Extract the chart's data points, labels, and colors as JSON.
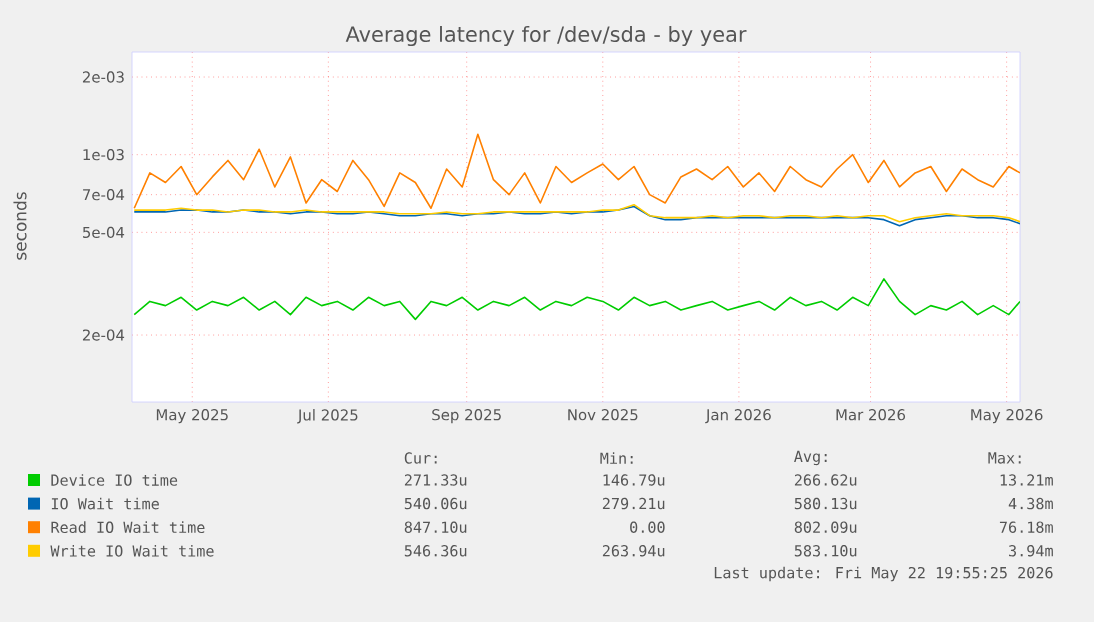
{
  "chart_data": {
    "type": "line",
    "title": "Average latency for /dev/sda - by year",
    "ylabel": "seconds",
    "x": [
      "2025-04-20",
      "2025-04-27",
      "2025-05-04",
      "2025-05-11",
      "2025-05-18",
      "2025-05-25",
      "2025-06-01",
      "2025-06-08",
      "2025-06-15",
      "2025-06-22",
      "2025-06-29",
      "2025-07-06",
      "2025-07-13",
      "2025-07-20",
      "2025-07-27",
      "2025-08-03",
      "2025-08-10",
      "2025-08-17",
      "2025-08-24",
      "2025-08-31",
      "2025-09-07",
      "2025-09-14",
      "2025-09-21",
      "2025-09-28",
      "2025-10-05",
      "2025-10-12",
      "2025-10-19",
      "2025-10-26",
      "2025-11-02",
      "2025-11-09",
      "2025-11-16",
      "2025-11-23",
      "2025-11-30",
      "2025-12-07",
      "2025-12-14",
      "2025-12-21",
      "2025-12-28",
      "2026-01-04",
      "2026-01-11",
      "2026-01-18",
      "2026-01-25",
      "2026-02-01",
      "2026-02-08",
      "2026-02-15",
      "2026-02-22",
      "2026-03-01",
      "2026-03-08",
      "2026-03-15",
      "2026-03-22",
      "2026-03-29",
      "2026-04-05",
      "2026-04-12",
      "2026-04-19",
      "2026-04-26",
      "2026-05-03",
      "2026-05-10",
      "2026-05-17",
      "2026-05-22"
    ],
    "series": [
      {
        "name": "Device IO time",
        "color": "#00cc00",
        "values": [
          0.00024,
          0.00027,
          0.00026,
          0.00028,
          0.00025,
          0.00027,
          0.00026,
          0.00028,
          0.00025,
          0.00027,
          0.00024,
          0.00028,
          0.00026,
          0.00027,
          0.00025,
          0.00028,
          0.00026,
          0.00027,
          0.00023,
          0.00027,
          0.00026,
          0.00028,
          0.00025,
          0.00027,
          0.00026,
          0.00028,
          0.00025,
          0.00027,
          0.00026,
          0.00028,
          0.00027,
          0.00025,
          0.00028,
          0.00026,
          0.00027,
          0.00025,
          0.00026,
          0.00027,
          0.00025,
          0.00026,
          0.00027,
          0.00025,
          0.00028,
          0.00026,
          0.00027,
          0.00025,
          0.00028,
          0.00026,
          0.00033,
          0.00027,
          0.00024,
          0.00026,
          0.00025,
          0.00027,
          0.00024,
          0.00026,
          0.00024,
          0.00027
        ]
      },
      {
        "name": "IO Wait time",
        "color": "#0066b3",
        "values": [
          0.0006,
          0.0006,
          0.0006,
          0.00061,
          0.00061,
          0.0006,
          0.0006,
          0.00061,
          0.0006,
          0.0006,
          0.00059,
          0.0006,
          0.0006,
          0.00059,
          0.00059,
          0.0006,
          0.00059,
          0.00058,
          0.00058,
          0.00059,
          0.00059,
          0.00058,
          0.00059,
          0.00059,
          0.0006,
          0.00059,
          0.00059,
          0.0006,
          0.00059,
          0.0006,
          0.0006,
          0.00061,
          0.00063,
          0.00058,
          0.00056,
          0.00056,
          0.00057,
          0.00057,
          0.00057,
          0.00057,
          0.00057,
          0.00057,
          0.00057,
          0.00057,
          0.00057,
          0.00057,
          0.00057,
          0.00057,
          0.00056,
          0.00053,
          0.00056,
          0.00057,
          0.00058,
          0.00058,
          0.00057,
          0.00057,
          0.00056,
          0.00054
        ]
      },
      {
        "name": "Read IO Wait time",
        "color": "#ff8000",
        "values": [
          0.00062,
          0.00085,
          0.00078,
          0.0009,
          0.0007,
          0.00082,
          0.00095,
          0.0008,
          0.00105,
          0.00075,
          0.00098,
          0.00065,
          0.0008,
          0.00072,
          0.00095,
          0.0008,
          0.00063,
          0.00085,
          0.00078,
          0.00062,
          0.00088,
          0.00075,
          0.0012,
          0.0008,
          0.0007,
          0.00085,
          0.00065,
          0.0009,
          0.00078,
          0.00085,
          0.00092,
          0.0008,
          0.0009,
          0.0007,
          0.00065,
          0.00082,
          0.00088,
          0.0008,
          0.0009,
          0.00075,
          0.00085,
          0.00072,
          0.0009,
          0.0008,
          0.00075,
          0.00088,
          0.001,
          0.00078,
          0.00095,
          0.00075,
          0.00085,
          0.0009,
          0.00072,
          0.00088,
          0.0008,
          0.00075,
          0.0009,
          0.00085
        ]
      },
      {
        "name": "Write IO Wait time",
        "color": "#ffcc00",
        "values": [
          0.00061,
          0.00061,
          0.00061,
          0.00062,
          0.00061,
          0.00061,
          0.0006,
          0.00061,
          0.00061,
          0.0006,
          0.0006,
          0.00061,
          0.0006,
          0.0006,
          0.0006,
          0.0006,
          0.0006,
          0.00059,
          0.00059,
          0.00059,
          0.0006,
          0.00059,
          0.00059,
          0.0006,
          0.0006,
          0.0006,
          0.0006,
          0.0006,
          0.0006,
          0.0006,
          0.00061,
          0.00061,
          0.00064,
          0.00058,
          0.00057,
          0.00057,
          0.00057,
          0.00058,
          0.00057,
          0.00058,
          0.00058,
          0.00057,
          0.00058,
          0.00058,
          0.00057,
          0.00058,
          0.00057,
          0.00058,
          0.00058,
          0.00055,
          0.00057,
          0.00058,
          0.00059,
          0.00058,
          0.00058,
          0.00058,
          0.00057,
          0.00055
        ]
      }
    ],
    "log": "y",
    "xlim": [
      "2025-04-19",
      "2026-05-22"
    ],
    "ylim": [
      0.00011,
      0.0025
    ],
    "xticks": [
      {
        "value": "2025-05-16",
        "label": "May 2025"
      },
      {
        "value": "2025-07-16",
        "label": "Jul 2025"
      },
      {
        "value": "2025-09-16",
        "label": "Sep 2025"
      },
      {
        "value": "2025-11-16",
        "label": "Nov 2025"
      },
      {
        "value": "2026-01-16",
        "label": "Jan 2026"
      },
      {
        "value": "2026-03-16",
        "label": "Mar 2026"
      },
      {
        "value": "2026-05-16",
        "label": "May 2026"
      }
    ],
    "yticks": [
      {
        "value": 0.0002,
        "label": "2e-04"
      },
      {
        "value": 0.0005,
        "label": "5e-04"
      },
      {
        "value": 0.0007,
        "label": "7e-04"
      },
      {
        "value": 0.001,
        "label": "1e-03"
      },
      {
        "value": 0.002,
        "label": "2e-03"
      }
    ],
    "grid": true,
    "legend": "bottom",
    "marker": "none",
    "line_style": "solid",
    "annotations": [
      "Cur:",
      "Min:",
      "Avg:",
      "Max:",
      "271.33u",
      "146.79u",
      "266.62u",
      "13.21m",
      "540.06u",
      "279.21u",
      "580.13u",
      "4.38m",
      "847.10u",
      "0.00",
      "802.09u",
      "76.18m",
      "546.36u",
      "263.94u",
      "583.10u",
      "3.94m",
      "Last update: Fri May 22 19:55:25 2026"
    ]
  }
}
